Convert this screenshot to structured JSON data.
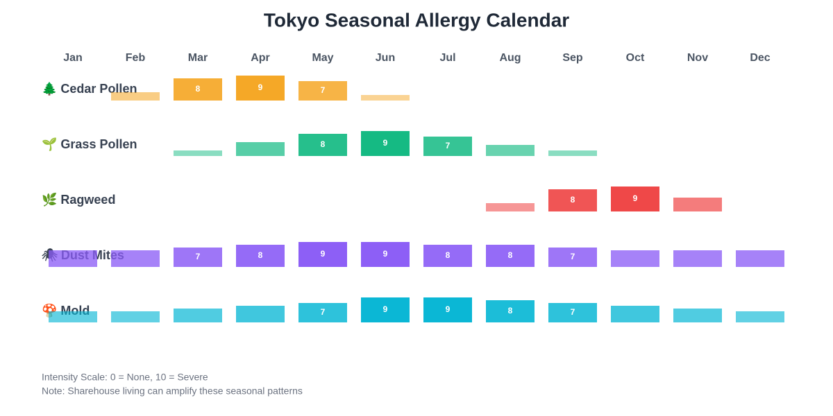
{
  "chart_data": {
    "type": "calendar",
    "title": "Tokyo Seasonal Allergy Calendar",
    "categories": [
      "Jan",
      "Feb",
      "Mar",
      "Apr",
      "May",
      "Jun",
      "Jul",
      "Aug",
      "Sep",
      "Oct",
      "Nov",
      "Dec"
    ],
    "series": [
      {
        "name": "🌲 Cedar Pollen",
        "color": "#f5a623",
        "values": [
          0,
          3,
          8,
          9,
          7,
          2,
          0,
          0,
          0,
          0,
          0,
          0
        ]
      },
      {
        "name": "🌱 Grass Pollen",
        "color": "#10b981",
        "values": [
          0,
          0,
          2,
          5,
          8,
          9,
          7,
          4,
          2,
          0,
          0,
          0
        ]
      },
      {
        "name": "🌿 Ragweed",
        "color": "#ef4444",
        "values": [
          0,
          0,
          0,
          0,
          0,
          0,
          0,
          3,
          8,
          9,
          5,
          0
        ]
      },
      {
        "name": "🕷 Dust Mites",
        "color": "#8b5cf6",
        "values": [
          6,
          6,
          7,
          8,
          9,
          9,
          8,
          8,
          7,
          6,
          6,
          6
        ]
      },
      {
        "name": "🍄 Mold",
        "color": "#06b6d4",
        "values": [
          4,
          4,
          5,
          6,
          7,
          9,
          9,
          8,
          7,
          6,
          5,
          4
        ]
      }
    ],
    "notes": [
      "Intensity Scale: 0 = None, 10 = Severe",
      "Note: Sharehouse living can amplify these seasonal patterns"
    ]
  }
}
